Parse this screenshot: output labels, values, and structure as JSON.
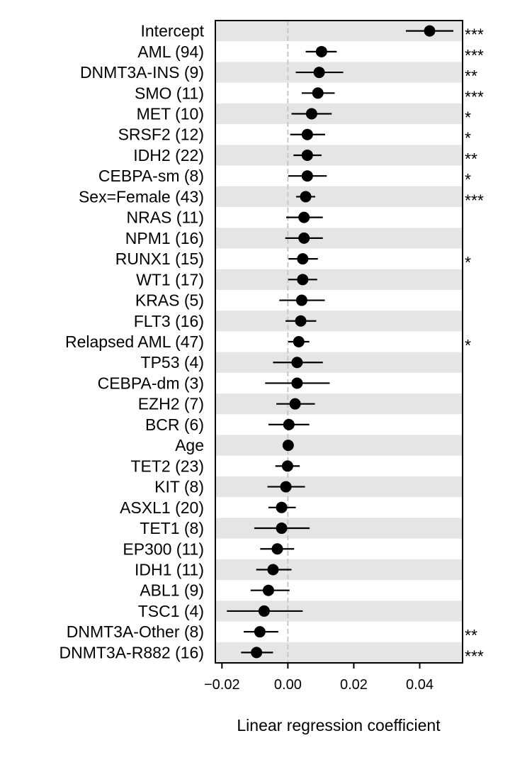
{
  "chart_data": {
    "type": "forest",
    "title": "",
    "xlabel": "Linear regression coefficient",
    "ylabel": "",
    "xlim": [
      -0.022,
      0.053
    ],
    "xticks": [
      -0.02,
      0.0,
      0.02,
      0.04
    ],
    "xtick_labels": [
      "−0.02",
      "0.00",
      "0.02",
      "0.04"
    ],
    "reference_line_x": 0,
    "row_banding": "alternating grey / white",
    "grid": false,
    "legend": "none",
    "colors": {
      "point": "#000000",
      "band": "#e5e5e5",
      "reference_line": "#c8c8c8"
    },
    "rows": [
      {
        "label": "Intercept",
        "value": 0.043,
        "ci_low": 0.0358,
        "ci_high": 0.0502,
        "sig": "***"
      },
      {
        "label": "AML (94)",
        "value": 0.0102,
        "ci_low": 0.0054,
        "ci_high": 0.0148,
        "sig": "***"
      },
      {
        "label": "DNMT3A-INS (9)",
        "value": 0.0095,
        "ci_low": 0.0024,
        "ci_high": 0.0168,
        "sig": "**"
      },
      {
        "label": "SMO (11)",
        "value": 0.0091,
        "ci_low": 0.0042,
        "ci_high": 0.0142,
        "sig": "***"
      },
      {
        "label": "MET (10)",
        "value": 0.0072,
        "ci_low": 0.0011,
        "ci_high": 0.0133,
        "sig": "*"
      },
      {
        "label": "SRSF2 (12)",
        "value": 0.0059,
        "ci_low": 0.0007,
        "ci_high": 0.0113,
        "sig": "*"
      },
      {
        "label": "IDH2 (22)",
        "value": 0.0059,
        "ci_low": 0.0017,
        "ci_high": 0.0102,
        "sig": "**"
      },
      {
        "label": "CEBPA-sm (8)",
        "value": 0.0059,
        "ci_low": 0.0001,
        "ci_high": 0.0118,
        "sig": "*"
      },
      {
        "label": "Sex=Female (43)",
        "value": 0.0054,
        "ci_low": 0.0025,
        "ci_high": 0.0083,
        "sig": "***"
      },
      {
        "label": "NRAS (11)",
        "value": 0.0049,
        "ci_low": -0.0005,
        "ci_high": 0.0106,
        "sig": ""
      },
      {
        "label": "NPM1 (16)",
        "value": 0.0049,
        "ci_low": -0.0008,
        "ci_high": 0.0106,
        "sig": ""
      },
      {
        "label": "RUNX1 (15)",
        "value": 0.0045,
        "ci_low": 0.0002,
        "ci_high": 0.0091,
        "sig": "*"
      },
      {
        "label": "WT1 (17)",
        "value": 0.0045,
        "ci_low": 0.0001,
        "ci_high": 0.0089,
        "sig": ""
      },
      {
        "label": "KRAS (5)",
        "value": 0.0042,
        "ci_low": -0.0026,
        "ci_high": 0.0112,
        "sig": ""
      },
      {
        "label": "FLT3 (16)",
        "value": 0.0039,
        "ci_low": -0.0007,
        "ci_high": 0.0086,
        "sig": ""
      },
      {
        "label": "Relapsed AML (47)",
        "value": 0.0033,
        "ci_low": 0.0001,
        "ci_high": 0.0065,
        "sig": "*"
      },
      {
        "label": "TP53 (4)",
        "value": 0.0028,
        "ci_low": -0.0045,
        "ci_high": 0.0106,
        "sig": ""
      },
      {
        "label": "CEBPA-dm (3)",
        "value": 0.0028,
        "ci_low": -0.0069,
        "ci_high": 0.0127,
        "sig": ""
      },
      {
        "label": "EZH2 (7)",
        "value": 0.0022,
        "ci_low": -0.0035,
        "ci_high": 0.0082,
        "sig": ""
      },
      {
        "label": "BCR (6)",
        "value": 0.0003,
        "ci_low": -0.0059,
        "ci_high": 0.0065,
        "sig": ""
      },
      {
        "label": "Age",
        "value": 0.0001,
        "ci_low": -0.0001,
        "ci_high": 0.0003,
        "sig": ""
      },
      {
        "label": "TET2 (23)",
        "value": -0.0001,
        "ci_low": -0.0038,
        "ci_high": 0.0036,
        "sig": ""
      },
      {
        "label": "KIT (8)",
        "value": -0.0006,
        "ci_low": -0.0062,
        "ci_high": 0.0052,
        "sig": ""
      },
      {
        "label": "ASXL1 (20)",
        "value": -0.0019,
        "ci_low": -0.0059,
        "ci_high": 0.0024,
        "sig": ""
      },
      {
        "label": "TET1 (8)",
        "value": -0.0019,
        "ci_low": -0.0102,
        "ci_high": 0.0066,
        "sig": ""
      },
      {
        "label": "EP300 (11)",
        "value": -0.0032,
        "ci_low": -0.0084,
        "ci_high": 0.0019,
        "sig": ""
      },
      {
        "label": "IDH1 (11)",
        "value": -0.0045,
        "ci_low": -0.0096,
        "ci_high": 0.0011,
        "sig": ""
      },
      {
        "label": "ABL1 (9)",
        "value": -0.0059,
        "ci_low": -0.0113,
        "ci_high": 0.0005,
        "sig": ""
      },
      {
        "label": "TSC1 (4)",
        "value": -0.0072,
        "ci_low": -0.0185,
        "ci_high": 0.0045,
        "sig": ""
      },
      {
        "label": "DNMT3A-Other (8)",
        "value": -0.0085,
        "ci_low": -0.0134,
        "ci_high": -0.0029,
        "sig": "**"
      },
      {
        "label": "DNMT3A-R882 (16)",
        "value": -0.0095,
        "ci_low": -0.0142,
        "ci_high": -0.0045,
        "sig": "***"
      }
    ]
  }
}
